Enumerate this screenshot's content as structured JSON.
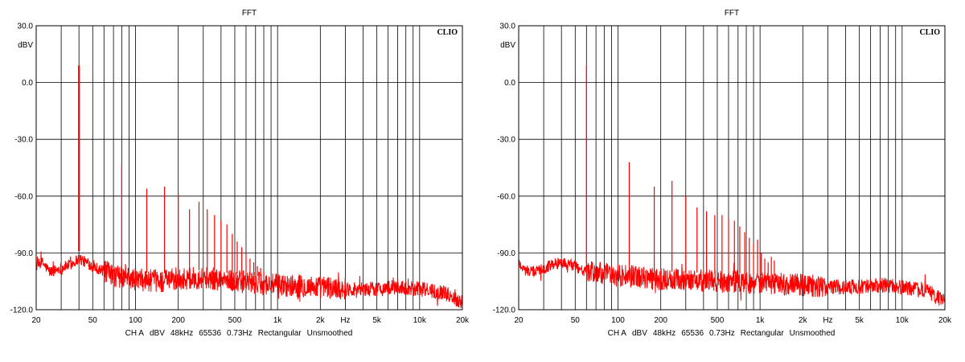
{
  "colors": {
    "trace": "#ff0000",
    "grid": "#000000",
    "plot_bg": "#ffffff"
  },
  "chart_data": [
    {
      "type": "line",
      "title": "FFT",
      "brand": "CLIO",
      "ylabel": "dBV",
      "xlabel": "",
      "x_scale": "log",
      "xlim": [
        20,
        20000
      ],
      "ylim": [
        -120,
        30
      ],
      "grid": true,
      "y_ticks": [
        30,
        0,
        -30,
        -60,
        -90,
        -120
      ],
      "y_tick_labels": [
        "30.0",
        "0.0",
        "-30.0",
        "-60.0",
        "-90.0",
        "-120.0"
      ],
      "x_ticks": [
        20,
        50,
        100,
        200,
        500,
        1000,
        2000,
        3000,
        5000,
        10000,
        20000
      ],
      "x_tick_labels": [
        "20",
        "50",
        "100",
        "200",
        "500",
        "1k",
        "2k",
        "Hz",
        "5k",
        "10k",
        "20k"
      ],
      "footer": [
        "CH A",
        "dBV",
        "48kHz",
        "65536",
        "0.73Hz",
        "Rectangular",
        "Unsmoothed"
      ],
      "fundamental_hz": 40,
      "noise_floor": {
        "x": [
          20,
          22,
          25,
          30,
          35,
          40,
          50,
          70,
          100,
          150,
          200,
          300,
          500,
          700,
          1000,
          2000,
          3000,
          5000,
          7000,
          10000,
          15000,
          20000
        ],
        "y": [
          -97,
          -95,
          -100,
          -98,
          -96,
          -93,
          -97,
          -102,
          -104,
          -105,
          -104,
          -103,
          -105,
          -106,
          -107,
          -108,
          -109,
          -109,
          -108,
          -109,
          -111,
          -116
        ]
      },
      "series": [
        {
          "x": [
            40,
            80,
            120,
            160,
            200,
            240,
            280,
            320,
            360,
            400,
            440,
            480,
            520,
            560,
            600,
            640,
            680,
            720,
            760,
            800
          ],
          "y": [
            9,
            -43,
            -56,
            -55,
            -59,
            -67,
            -63,
            -67,
            -70,
            -73,
            -75,
            -80,
            -84,
            -87,
            -90,
            -93,
            -95,
            -97,
            -98,
            -100
          ]
        }
      ]
    },
    {
      "type": "line",
      "title": "FFT",
      "brand": "CLIO",
      "ylabel": "dBV",
      "xlabel": "",
      "x_scale": "log",
      "xlim": [
        20,
        20000
      ],
      "ylim": [
        -120,
        30
      ],
      "grid": true,
      "y_ticks": [
        30,
        0,
        -30,
        -60,
        -90,
        -120
      ],
      "y_tick_labels": [
        "30.0",
        "0.0",
        "-30.0",
        "-60.0",
        "-90.0",
        "-120.0"
      ],
      "x_ticks": [
        20,
        50,
        100,
        200,
        500,
        1000,
        2000,
        3000,
        5000,
        10000,
        20000
      ],
      "x_tick_labels": [
        "20",
        "50",
        "100",
        "200",
        "500",
        "1k",
        "2k",
        "Hz",
        "5k",
        "10k",
        "20k"
      ],
      "footer": [
        "CH A",
        "dBV",
        "48kHz",
        "65536",
        "0.73Hz",
        "Rectangular",
        "Unsmoothed"
      ],
      "fundamental_hz": 60,
      "noise_floor": {
        "x": [
          20,
          22,
          25,
          30,
          35,
          40,
          50,
          60,
          100,
          150,
          200,
          300,
          500,
          700,
          1000,
          2000,
          3000,
          5000,
          7000,
          10000,
          15000,
          20000
        ],
        "y": [
          -95,
          -99,
          -100,
          -98,
          -96,
          -95,
          -97,
          -100,
          -102,
          -103,
          -104,
          -104,
          -105,
          -105,
          -106,
          -107,
          -108,
          -108,
          -107,
          -108,
          -110,
          -116
        ]
      },
      "series": [
        {
          "x": [
            60,
            120,
            180,
            240,
            300,
            360,
            420,
            480,
            540,
            600,
            660,
            720,
            780,
            840,
            900,
            960,
            1020,
            1080,
            1140,
            1200,
            1260
          ],
          "y": [
            9,
            -42,
            -55,
            -52,
            -60,
            -66,
            -68,
            -70,
            -70,
            -72,
            -73,
            -76,
            -79,
            -82,
            -85,
            -83,
            -90,
            -93,
            -95,
            -92,
            -94
          ]
        }
      ]
    }
  ]
}
